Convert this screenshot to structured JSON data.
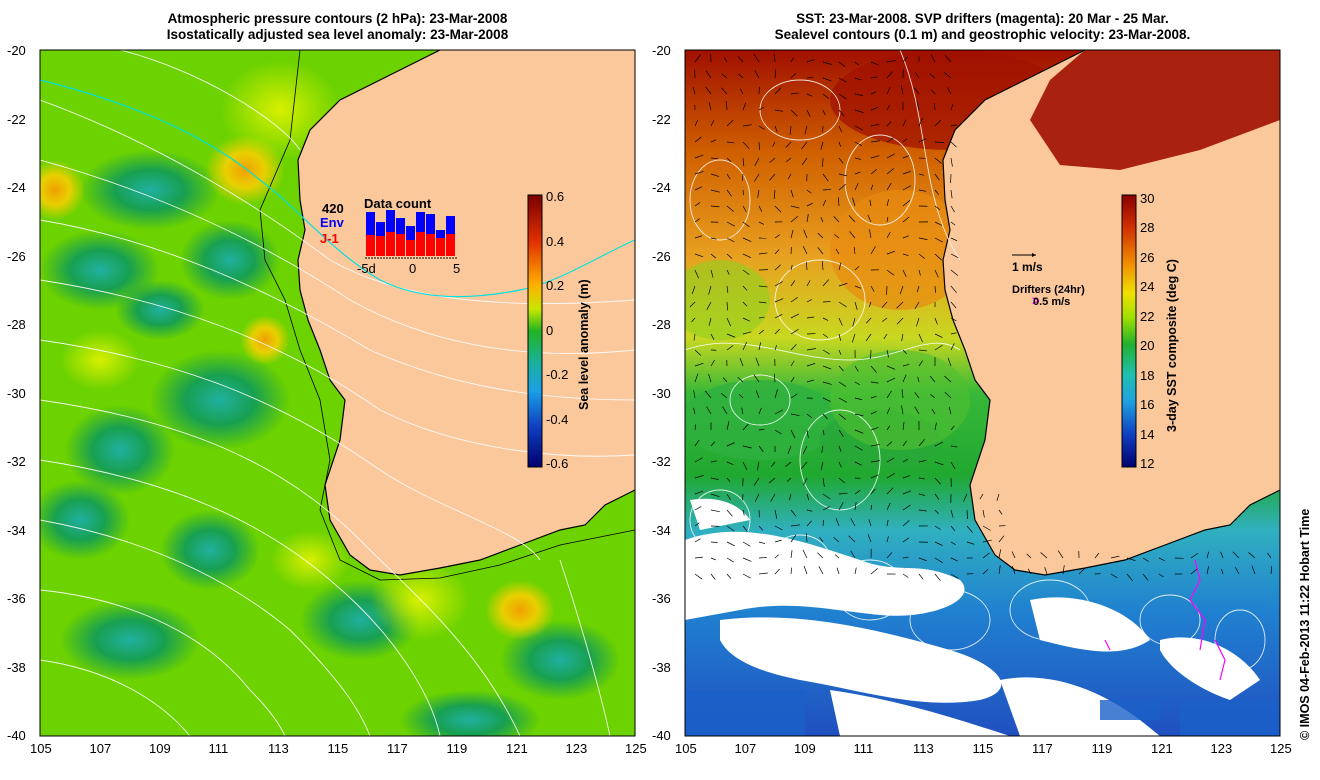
{
  "left_panel": {
    "title_line1": "Atmospheric pressure contours (2 hPa): 23-Mar-2008",
    "title_line2": "Isostatically adjusted sea level anomaly: 23-Mar-2008",
    "x_ticks": [
      "105",
      "107",
      "109",
      "111",
      "113",
      "115",
      "117",
      "119",
      "121",
      "123",
      "125"
    ],
    "y_ticks": [
      "-20",
      "-22",
      "-24",
      "-26",
      "-28",
      "-30",
      "-32",
      "-34",
      "-36",
      "-38",
      "-40"
    ],
    "colorbar_label": "Sea level anomaly (m)",
    "colorbar_ticks": [
      "0.6",
      "0.4",
      "0.2",
      "0",
      "-0.2",
      "-0.4",
      "-0.6"
    ],
    "data_count": {
      "title": "Data count",
      "value": "420",
      "env_label": "Env",
      "j1_label": "J-1",
      "axis_ticks": [
        "-5d",
        "0",
        "5"
      ],
      "env_color": "#0000ff",
      "j1_color": "#ff0000"
    }
  },
  "right_panel": {
    "title_line1": "SST: 23-Mar-2008. SVP drifters (magenta): 20 Mar - 25 Mar.",
    "title_line2": "Sealevel contours (0.1 m) and geostrophic velocity: 23-Mar-2008.",
    "x_ticks": [
      "105",
      "107",
      "109",
      "111",
      "113",
      "115",
      "117",
      "119",
      "121",
      "123",
      "125"
    ],
    "y_ticks": [
      "-20",
      "-22",
      "-24",
      "-26",
      "-28",
      "-30",
      "-32",
      "-34",
      "-36",
      "-38",
      "-40"
    ],
    "colorbar_label": "3-day SST composite (deg C)",
    "colorbar_ticks": [
      "30",
      "28",
      "26",
      "24",
      "22",
      "20",
      "18",
      "16",
      "14",
      "12"
    ],
    "velocity_legend": "1 m/s",
    "drifter_legend_title": "Drifters (24hr)",
    "drifter_legend_value": "0.5 m/s",
    "drifter_color": "#ff00ff"
  },
  "credit": "© IMOS 04-Feb-2013 11:22 Hobart Time",
  "colors": {
    "land": "#fbc89c",
    "coast": "#000000",
    "contour": "#ffffff",
    "frame": "#000000"
  }
}
